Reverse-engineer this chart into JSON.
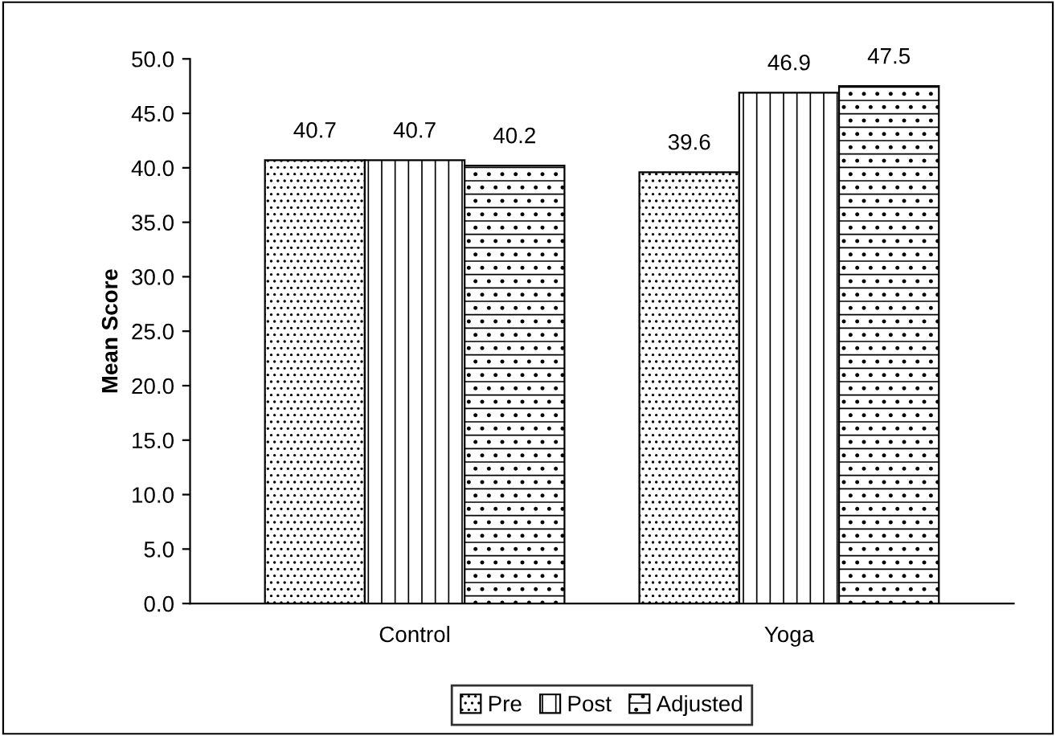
{
  "chart_data": {
    "type": "bar",
    "ylabel": "Mean Score",
    "categories": [
      "Control",
      "Yoga"
    ],
    "series": [
      {
        "name": "Pre",
        "color": "#000000",
        "values": [
          40.7,
          39.6
        ]
      },
      {
        "name": "Post",
        "color": "#000000",
        "values": [
          40.7,
          46.9
        ]
      },
      {
        "name": "Adjusted",
        "color": "#000000",
        "values": [
          40.2,
          47.5
        ]
      }
    ],
    "ylim": [
      0,
      50
    ],
    "yticks": [
      {
        "value": 0,
        "label": "0.0"
      },
      {
        "value": 5,
        "label": "5.0"
      },
      {
        "value": 10,
        "label": "10.0"
      },
      {
        "value": 15,
        "label": "15.0"
      },
      {
        "value": 20,
        "label": "20.0"
      },
      {
        "value": 25,
        "label": "25.0"
      },
      {
        "value": 30,
        "label": "30.0"
      },
      {
        "value": 35,
        "label": "35.0"
      },
      {
        "value": 40,
        "label": "40.0"
      },
      {
        "value": 45,
        "label": "45.0"
      },
      {
        "value": 50,
        "label": "50.0"
      }
    ],
    "data_labels": true,
    "grid": false,
    "legend": "bottom"
  }
}
